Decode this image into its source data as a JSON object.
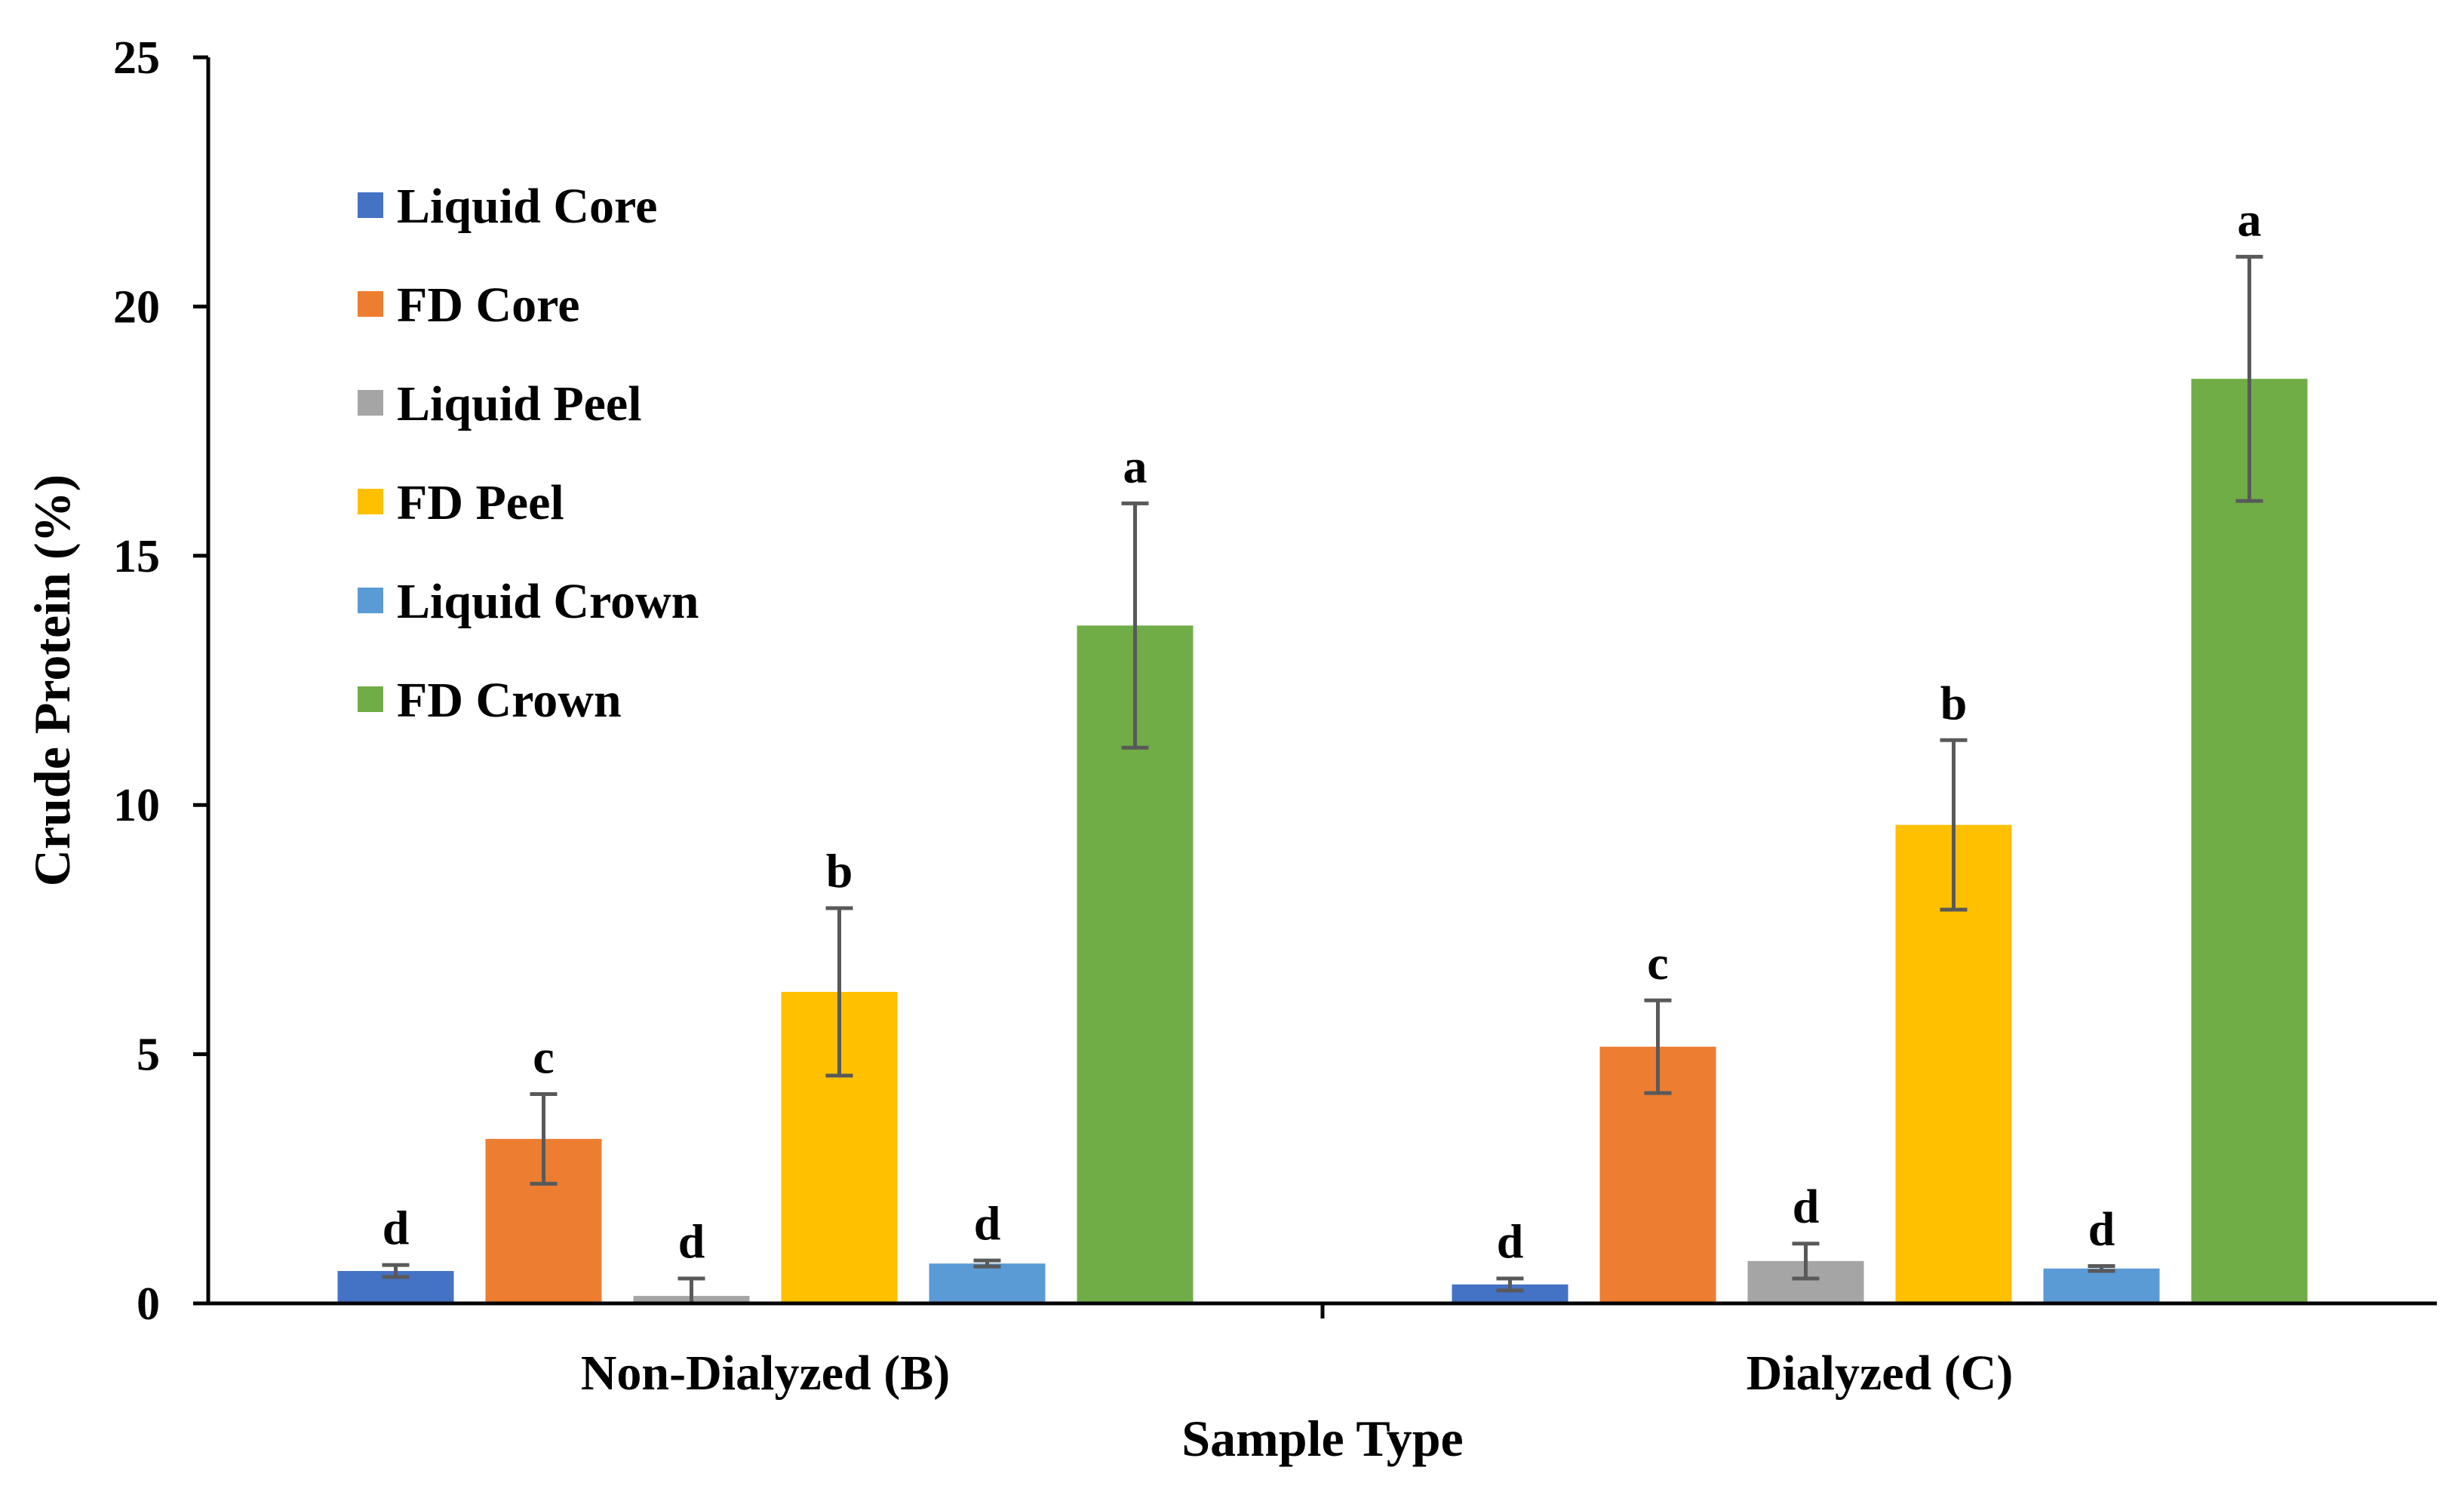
{
  "chart_data": {
    "type": "bar",
    "title": "",
    "xlabel": "Sample Type",
    "ylabel": "Crude Protein (%)",
    "ylim": [
      0,
      25
    ],
    "yticks": [
      0,
      5,
      10,
      15,
      20,
      25
    ],
    "grid": false,
    "legend_position": "top-left",
    "categories": [
      "Non-Dialyzed (B)",
      "Dialyzed (C)"
    ],
    "series": [
      {
        "name": "Liquid Core",
        "color": "#4472C4",
        "values": [
          0.65,
          0.38
        ],
        "errors": [
          0.12,
          0.12
        ],
        "letters": [
          "d",
          "d"
        ]
      },
      {
        "name": "FD Core",
        "color": "#ED7D31",
        "values": [
          3.3,
          5.15
        ],
        "errors": [
          0.9,
          0.93
        ],
        "letters": [
          "c",
          "c"
        ]
      },
      {
        "name": "Liquid Peel",
        "color": "#A5A5A5",
        "values": [
          0.15,
          0.85
        ],
        "errors": [
          0.35,
          0.35
        ],
        "letters": [
          "d",
          "d"
        ]
      },
      {
        "name": "FD Peel",
        "color": "#FFC000",
        "values": [
          6.25,
          9.6
        ],
        "errors": [
          1.68,
          1.7
        ],
        "letters": [
          "b",
          "b"
        ]
      },
      {
        "name": "Liquid Crown",
        "color": "#5B9BD5",
        "values": [
          0.8,
          0.7
        ],
        "errors": [
          0.06,
          0.05
        ],
        "letters": [
          "d",
          "d"
        ]
      },
      {
        "name": "FD Crown",
        "color": "#70AD47",
        "values": [
          13.6,
          18.55
        ],
        "errors": [
          2.45,
          2.45
        ],
        "letters": [
          "a",
          "a"
        ]
      }
    ]
  }
}
